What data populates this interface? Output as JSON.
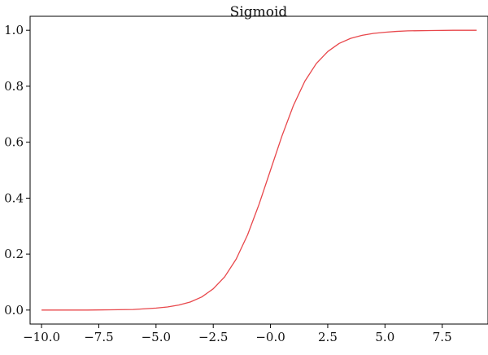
{
  "chart_data": {
    "type": "line",
    "title": "Sigmoid",
    "xlabel": "",
    "ylabel": "",
    "xlim": [
      -10.5,
      9.5
    ],
    "ylim": [
      -0.05,
      1.05
    ],
    "xticks": [
      -10.0,
      -7.5,
      -5.0,
      -2.5,
      0.0,
      2.5,
      5.0,
      7.5
    ],
    "xtick_labels": [
      "−10.0",
      "−7.5",
      "−5.0",
      "−2.5",
      "−0.0",
      "2.5",
      "5.0",
      "7.5"
    ],
    "yticks": [
      0.0,
      0.2,
      0.4,
      0.6,
      0.8,
      1.0
    ],
    "ytick_labels": [
      "0.0",
      "0.2",
      "0.4",
      "0.6",
      "0.8",
      "1.0"
    ],
    "grid": false,
    "legend": "none",
    "series": [
      {
        "color": "#e8474b",
        "x": [
          -10.0,
          -9.0,
          -8.0,
          -7.0,
          -6.0,
          -5.0,
          -4.5,
          -4.0,
          -3.5,
          -3.0,
          -2.5,
          -2.0,
          -1.5,
          -1.0,
          -0.5,
          0.0,
          0.5,
          1.0,
          1.5,
          2.0,
          2.5,
          3.0,
          3.5,
          4.0,
          4.5,
          5.0,
          5.5,
          6.0,
          7.0,
          8.0,
          9.0
        ],
        "y": [
          0.0,
          0.0,
          0.0,
          0.001,
          0.002,
          0.007,
          0.011,
          0.018,
          0.029,
          0.047,
          0.076,
          0.119,
          0.182,
          0.269,
          0.378,
          0.5,
          0.622,
          0.731,
          0.818,
          0.881,
          0.924,
          0.953,
          0.971,
          0.982,
          0.989,
          0.993,
          0.996,
          0.998,
          0.999,
          1.0,
          1.0
        ]
      }
    ]
  }
}
